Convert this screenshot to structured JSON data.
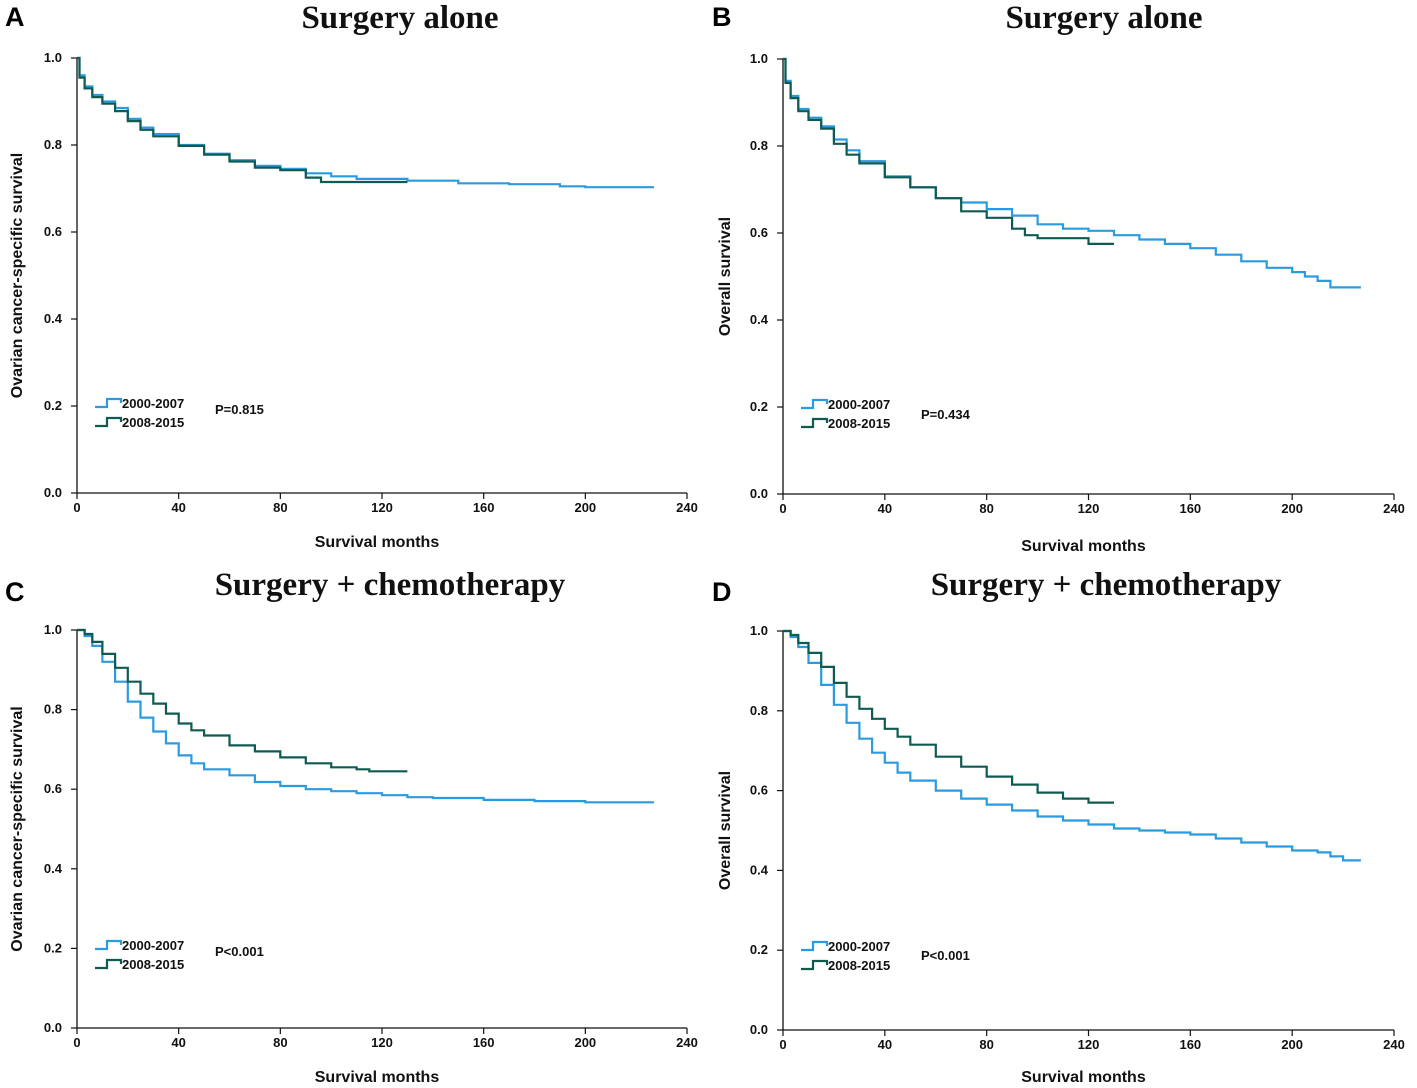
{
  "colors": {
    "series_2000_2007": "#2b9be0",
    "series_2008_2015": "#0f5b52"
  },
  "chart_data": [
    {
      "type": "line",
      "panel_letter": "A",
      "title": "Surgery alone",
      "xlabel": "Survival months",
      "ylabel": "Ovarian cancer-specific survival",
      "xlim": [
        0,
        240
      ],
      "ylim": [
        0,
        1.0
      ],
      "xticks": [
        "0",
        "40",
        "80",
        "120",
        "160",
        "200",
        "240"
      ],
      "yticks": [
        "0.0",
        "0.2",
        "0.4",
        "0.6",
        "0.8",
        "1.0"
      ],
      "legend": "bottom-left",
      "p_value": "P=0.815",
      "series": [
        {
          "name": "2000-2007",
          "x": [
            0,
            1,
            3,
            6,
            10,
            15,
            20,
            25,
            30,
            40,
            50,
            60,
            70,
            80,
            90,
            100,
            110,
            130,
            150,
            170,
            190,
            200,
            227
          ],
          "y": [
            1.0,
            0.96,
            0.935,
            0.915,
            0.9,
            0.885,
            0.86,
            0.84,
            0.825,
            0.8,
            0.78,
            0.765,
            0.752,
            0.745,
            0.735,
            0.728,
            0.722,
            0.718,
            0.712,
            0.71,
            0.705,
            0.703,
            0.703
          ]
        },
        {
          "name": "2008-2015",
          "x": [
            0,
            1,
            3,
            6,
            10,
            15,
            20,
            25,
            30,
            40,
            50,
            60,
            70,
            80,
            90,
            96,
            110,
            130
          ],
          "y": [
            1.0,
            0.955,
            0.93,
            0.91,
            0.895,
            0.878,
            0.855,
            0.835,
            0.82,
            0.798,
            0.778,
            0.762,
            0.748,
            0.742,
            0.725,
            0.715,
            0.715,
            0.715
          ]
        }
      ]
    },
    {
      "type": "line",
      "panel_letter": "B",
      "title": "Surgery alone",
      "xlabel": "Survival months",
      "ylabel": "Overall survival",
      "xlim": [
        0,
        240
      ],
      "ylim": [
        0,
        1.0
      ],
      "xticks": [
        "0",
        "40",
        "80",
        "120",
        "160",
        "200",
        "240"
      ],
      "yticks": [
        "0.0",
        "0.2",
        "0.4",
        "0.6",
        "0.8",
        "1.0"
      ],
      "legend": "bottom-left",
      "p_value": "P=0.434",
      "series": [
        {
          "name": "2000-2007",
          "x": [
            0,
            1,
            3,
            6,
            10,
            15,
            20,
            25,
            30,
            40,
            50,
            60,
            70,
            80,
            90,
            100,
            110,
            120,
            130,
            140,
            150,
            160,
            170,
            180,
            190,
            200,
            205,
            210,
            215,
            227
          ],
          "y": [
            1.0,
            0.95,
            0.915,
            0.885,
            0.865,
            0.845,
            0.815,
            0.79,
            0.765,
            0.73,
            0.705,
            0.68,
            0.67,
            0.655,
            0.64,
            0.62,
            0.61,
            0.605,
            0.595,
            0.585,
            0.575,
            0.565,
            0.55,
            0.535,
            0.52,
            0.51,
            0.5,
            0.49,
            0.475,
            0.475
          ]
        },
        {
          "name": "2008-2015",
          "x": [
            0,
            1,
            3,
            6,
            10,
            15,
            20,
            25,
            30,
            40,
            50,
            60,
            70,
            80,
            90,
            95,
            100,
            110,
            120,
            130
          ],
          "y": [
            1.0,
            0.945,
            0.91,
            0.88,
            0.86,
            0.84,
            0.805,
            0.78,
            0.76,
            0.728,
            0.705,
            0.68,
            0.65,
            0.635,
            0.61,
            0.595,
            0.588,
            0.588,
            0.575,
            0.575
          ]
        }
      ]
    },
    {
      "type": "line",
      "panel_letter": "C",
      "title": "Surgery + chemotherapy",
      "xlabel": "Survival months",
      "ylabel": "Ovarian cancer-specific survival",
      "xlim": [
        0,
        240
      ],
      "ylim": [
        0,
        1.0
      ],
      "xticks": [
        "0",
        "40",
        "80",
        "120",
        "160",
        "200",
        "240"
      ],
      "yticks": [
        "0.0",
        "0.2",
        "0.4",
        "0.6",
        "0.8",
        "1.0"
      ],
      "legend": "bottom-left",
      "p_value": "P<0.001",
      "series": [
        {
          "name": "2000-2007",
          "x": [
            0,
            3,
            6,
            10,
            15,
            20,
            25,
            30,
            35,
            40,
            45,
            50,
            60,
            70,
            80,
            90,
            100,
            110,
            120,
            130,
            140,
            160,
            180,
            200,
            227
          ],
          "y": [
            1.0,
            0.985,
            0.96,
            0.92,
            0.87,
            0.82,
            0.78,
            0.745,
            0.715,
            0.685,
            0.665,
            0.65,
            0.635,
            0.618,
            0.608,
            0.6,
            0.595,
            0.59,
            0.585,
            0.58,
            0.578,
            0.573,
            0.57,
            0.567,
            0.567
          ]
        },
        {
          "name": "2008-2015",
          "x": [
            0,
            3,
            6,
            10,
            15,
            20,
            25,
            30,
            35,
            40,
            45,
            50,
            60,
            70,
            80,
            90,
            100,
            110,
            115,
            130
          ],
          "y": [
            1.0,
            0.99,
            0.97,
            0.94,
            0.905,
            0.87,
            0.84,
            0.815,
            0.79,
            0.765,
            0.748,
            0.735,
            0.71,
            0.695,
            0.68,
            0.665,
            0.655,
            0.65,
            0.645,
            0.645
          ]
        }
      ]
    },
    {
      "type": "line",
      "panel_letter": "D",
      "title": "Surgery + chemotherapy",
      "xlabel": "Survival months",
      "ylabel": "Overall survival",
      "xlim": [
        0,
        240
      ],
      "ylim": [
        0,
        1.0
      ],
      "xticks": [
        "0",
        "40",
        "80",
        "120",
        "160",
        "200",
        "240"
      ],
      "yticks": [
        "0.0",
        "0.2",
        "0.4",
        "0.6",
        "0.8",
        "1.0"
      ],
      "legend": "bottom-left",
      "p_value": "P<0.001",
      "series": [
        {
          "name": "2000-2007",
          "x": [
            0,
            3,
            6,
            10,
            15,
            20,
            25,
            30,
            35,
            40,
            45,
            50,
            60,
            70,
            80,
            90,
            100,
            110,
            120,
            130,
            140,
            150,
            160,
            170,
            180,
            190,
            200,
            210,
            215,
            220,
            227
          ],
          "y": [
            1.0,
            0.985,
            0.96,
            0.92,
            0.865,
            0.815,
            0.77,
            0.73,
            0.695,
            0.67,
            0.645,
            0.625,
            0.6,
            0.58,
            0.565,
            0.55,
            0.535,
            0.525,
            0.515,
            0.505,
            0.5,
            0.495,
            0.49,
            0.48,
            0.47,
            0.46,
            0.45,
            0.445,
            0.435,
            0.425,
            0.425
          ]
        },
        {
          "name": "2008-2015",
          "x": [
            0,
            3,
            6,
            10,
            15,
            20,
            25,
            30,
            35,
            40,
            45,
            50,
            60,
            70,
            80,
            90,
            100,
            110,
            120,
            130
          ],
          "y": [
            1.0,
            0.99,
            0.97,
            0.945,
            0.91,
            0.87,
            0.835,
            0.805,
            0.78,
            0.755,
            0.735,
            0.715,
            0.685,
            0.66,
            0.635,
            0.615,
            0.595,
            0.58,
            0.57,
            0.57
          ]
        }
      ]
    }
  ]
}
